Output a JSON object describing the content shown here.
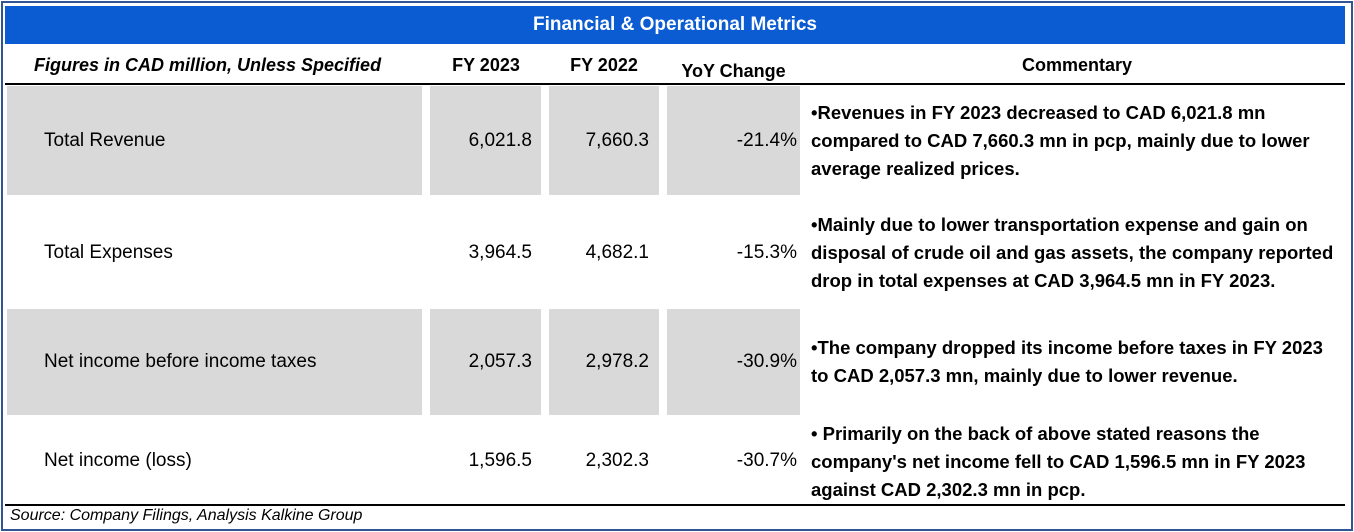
{
  "title": "Financial & Operational Metrics",
  "header": {
    "label": "Figures in CAD million, Unless Specified",
    "fy2023": "FY 2023",
    "fy2022": "FY 2022",
    "yoy": "YoY Change",
    "commentary": "Commentary"
  },
  "rows": [
    {
      "label": "Total Revenue",
      "fy2023": "6,021.8",
      "fy2022": "7,660.3",
      "yoy": "-21.4%",
      "commentary": "•Revenues in FY 2023 decreased to CAD 6,021.8 mn compared to CAD 7,660.3 mn in pcp, mainly due to lower average realized  prices.",
      "shaded": true
    },
    {
      "label": "Total Expenses",
      "fy2023": "3,964.5",
      "fy2022": "4,682.1",
      "yoy": "-15.3%",
      "commentary": "•Mainly due to lower transportation expense and gain on disposal of crude oil and gas assets, the company reported drop in total expenses at CAD 3,964.5 mn in FY 2023.",
      "shaded": false
    },
    {
      "label": "Net income before income taxes",
      "fy2023": "2,057.3",
      "fy2022": "2,978.2",
      "yoy": "-30.9%",
      "commentary": "•The company dropped its income before taxes in FY 2023 to CAD 2,057.3 mn, mainly due to lower revenue.",
      "shaded": true
    },
    {
      "label": "Net income (loss)",
      "fy2023": "1,596.5",
      "fy2022": "2,302.3",
      "yoy": "-30.7%",
      "commentary": "• Primarily on the back of above stated reasons the company's net income fell to CAD 1,596.5 mn in FY 2023 against CAD 2,302.3 mn in pcp.",
      "shaded": false
    }
  ],
  "source": "Source: Company Filings, Analysis Kalkine Group",
  "colors": {
    "title_bg": "#0b5bd3",
    "shade": "#d9d9d9",
    "frame": "#2f5597"
  }
}
